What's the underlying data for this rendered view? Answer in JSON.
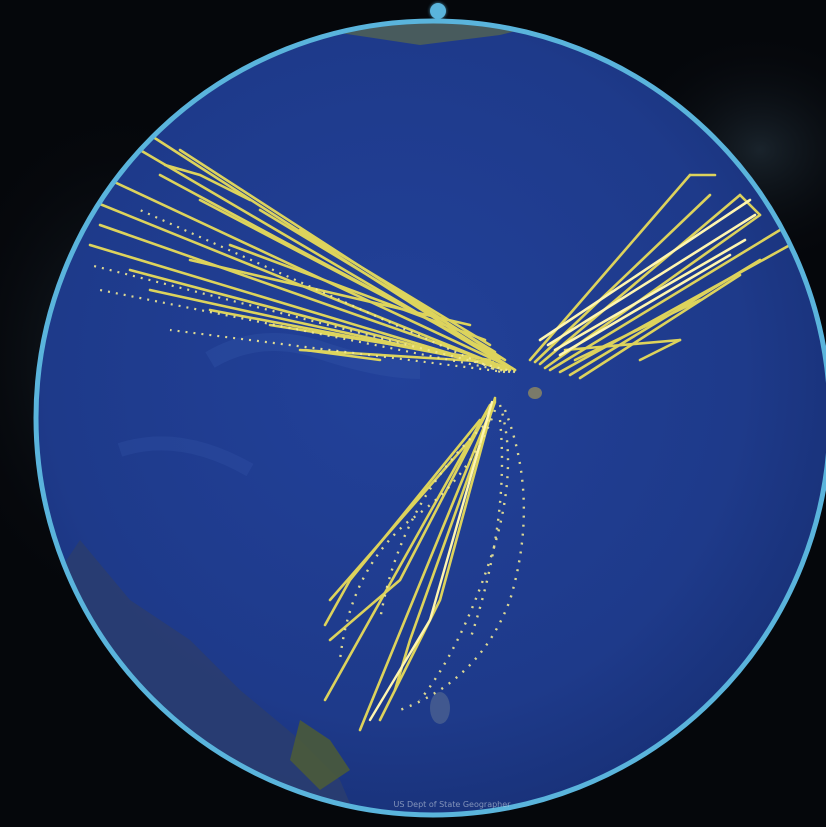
{
  "map": {
    "attribution": "US Dept of State Geographer",
    "colors": {
      "space": "#05070b",
      "ocean": "#1e3a8a",
      "ocean_deep": "#172f74",
      "land": "#4a5a3a",
      "land_light": "#8b8f70",
      "lens_ring": "#5ab4dc",
      "track": "#e8dc5a",
      "track_bright": "#fff6b0"
    },
    "icons": [
      "lens-handle-icon"
    ],
    "track_groups": [
      "west-tracks",
      "northeast-tracks",
      "south-tracks"
    ]
  }
}
